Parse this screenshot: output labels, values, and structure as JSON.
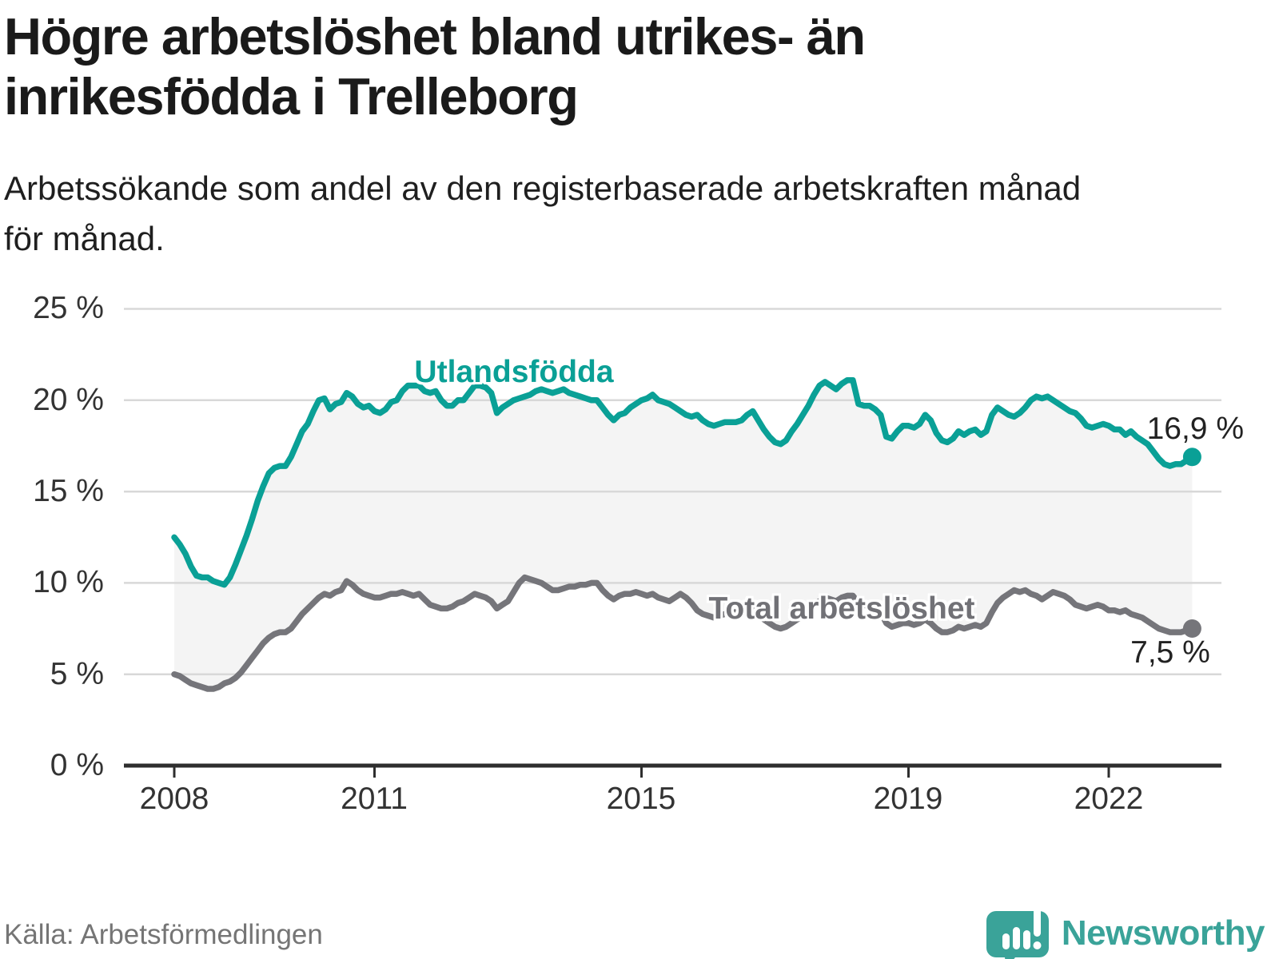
{
  "title_lines": [
    "Högre arbetslöshet bland utrikes- än",
    "inrikesfödda i Trelleborg"
  ],
  "subtitle_lines": [
    "Arbetssökande som andel av den registerbaserade arbetskraften månad",
    "för månad."
  ],
  "source": "Källa: Arbetsförmedlingen",
  "branding": {
    "name": "Newsworthy"
  },
  "colors": {
    "series_foreign_born": "#0aa096",
    "series_total": "#75757a",
    "band_fill": "#f4f4f4",
    "grid": "#d8d8d8",
    "axis": "#2e2e2e",
    "logo_teal": "#3aa399"
  },
  "chart_data": {
    "type": "line",
    "title": "Högre arbetslöshet bland utrikes- än inrikesfödda i Trelleborg",
    "subtitle": "Arbetssökande som andel av den registerbaserade arbetskraften månad för månad.",
    "xlabel": "",
    "ylabel": "",
    "ylim": [
      0,
      25
    ],
    "grid": "horizontal",
    "legend_position": "inline-labels",
    "frequency": "monthly",
    "x_start": "2008-01",
    "x_end": "2023-04",
    "x_tick_labels": [
      "2008",
      "2011",
      "2015",
      "2019",
      "2022"
    ],
    "x_tick_years": [
      2008,
      2011,
      2015,
      2019,
      2022
    ],
    "y_tick_labels": [
      "25 %",
      "20 %",
      "15 %",
      "10 %",
      "5 %",
      "0 %"
    ],
    "y_tick_values": [
      25,
      20,
      15,
      10,
      5,
      0
    ],
    "band_between_series": true,
    "series": [
      {
        "name": "Utlandsfödda",
        "color": "#0aa096",
        "end_label": "16,9 %",
        "end_value": 16.9,
        "values": [
          12.5,
          12.1,
          11.6,
          10.9,
          10.4,
          10.3,
          10.3,
          10.1,
          10.0,
          9.9,
          10.3,
          11.0,
          11.8,
          12.6,
          13.5,
          14.5,
          15.3,
          16.0,
          16.3,
          16.4,
          16.4,
          16.9,
          17.6,
          18.3,
          18.7,
          19.4,
          20.0,
          20.1,
          19.5,
          19.8,
          19.9,
          20.4,
          20.2,
          19.8,
          19.6,
          19.7,
          19.4,
          19.3,
          19.5,
          19.9,
          20.0,
          20.5,
          20.8,
          20.8,
          20.8,
          20.5,
          20.4,
          20.5,
          20.0,
          19.7,
          19.7,
          20.0,
          20.0,
          20.4,
          20.8,
          20.8,
          20.7,
          20.4,
          19.3,
          19.6,
          19.8,
          20.0,
          20.1,
          20.2,
          20.3,
          20.5,
          20.6,
          20.5,
          20.4,
          20.5,
          20.6,
          20.4,
          20.3,
          20.2,
          20.1,
          20.0,
          20.0,
          19.6,
          19.2,
          18.9,
          19.2,
          19.3,
          19.6,
          19.8,
          20.0,
          20.1,
          20.3,
          20.0,
          19.9,
          19.8,
          19.6,
          19.4,
          19.2,
          19.1,
          19.2,
          18.9,
          18.7,
          18.6,
          18.7,
          18.8,
          18.8,
          18.8,
          18.9,
          19.2,
          19.4,
          18.9,
          18.4,
          18.0,
          17.7,
          17.6,
          17.8,
          18.3,
          18.7,
          19.2,
          19.7,
          20.3,
          20.8,
          21.0,
          20.8,
          20.6,
          20.9,
          21.1,
          21.1,
          19.8,
          19.7,
          19.7,
          19.5,
          19.2,
          18.0,
          17.9,
          18.3,
          18.6,
          18.6,
          18.5,
          18.7,
          19.2,
          18.9,
          18.2,
          17.8,
          17.7,
          17.9,
          18.3,
          18.1,
          18.3,
          18.4,
          18.1,
          18.3,
          19.2,
          19.6,
          19.4,
          19.2,
          19.1,
          19.3,
          19.6,
          20.0,
          20.2,
          20.1,
          20.2,
          20.0,
          19.8,
          19.6,
          19.4,
          19.3,
          19.0,
          18.6,
          18.5,
          18.6,
          18.7,
          18.6,
          18.4,
          18.4,
          18.1,
          18.3,
          18.0,
          17.8,
          17.6,
          17.2,
          16.8,
          16.5,
          16.4,
          16.5,
          16.5,
          16.7,
          16.9
        ]
      },
      {
        "name": "Total arbetslöshet",
        "color": "#75757a",
        "end_label": "7,5 %",
        "end_value": 7.5,
        "values": [
          5.0,
          4.9,
          4.7,
          4.5,
          4.4,
          4.3,
          4.2,
          4.2,
          4.3,
          4.5,
          4.6,
          4.8,
          5.1,
          5.5,
          5.9,
          6.3,
          6.7,
          7.0,
          7.2,
          7.3,
          7.3,
          7.5,
          7.9,
          8.3,
          8.6,
          8.9,
          9.2,
          9.4,
          9.3,
          9.5,
          9.6,
          10.1,
          9.9,
          9.6,
          9.4,
          9.3,
          9.2,
          9.2,
          9.3,
          9.4,
          9.4,
          9.5,
          9.4,
          9.3,
          9.4,
          9.1,
          8.8,
          8.7,
          8.6,
          8.6,
          8.7,
          8.9,
          9.0,
          9.2,
          9.4,
          9.3,
          9.2,
          9.0,
          8.6,
          8.8,
          9.0,
          9.5,
          10.0,
          10.3,
          10.2,
          10.1,
          10.0,
          9.8,
          9.6,
          9.6,
          9.7,
          9.8,
          9.8,
          9.9,
          9.9,
          10.0,
          10.0,
          9.6,
          9.3,
          9.1,
          9.3,
          9.4,
          9.4,
          9.5,
          9.4,
          9.3,
          9.4,
          9.2,
          9.1,
          9.0,
          9.2,
          9.4,
          9.2,
          8.9,
          8.5,
          8.3,
          8.2,
          8.1,
          8.2,
          8.3,
          8.4,
          8.4,
          8.5,
          8.6,
          8.5,
          8.3,
          8.0,
          7.8,
          7.6,
          7.5,
          7.6,
          7.8,
          8.0,
          8.2,
          8.5,
          8.8,
          9.0,
          9.2,
          9.1,
          9.0,
          9.2,
          9.3,
          9.3,
          8.9,
          8.8,
          8.7,
          8.6,
          8.4,
          7.8,
          7.6,
          7.7,
          7.8,
          7.8,
          7.7,
          7.8,
          8.0,
          7.8,
          7.5,
          7.3,
          7.3,
          7.4,
          7.6,
          7.5,
          7.6,
          7.7,
          7.6,
          7.8,
          8.4,
          8.9,
          9.2,
          9.4,
          9.6,
          9.5,
          9.6,
          9.4,
          9.3,
          9.1,
          9.3,
          9.5,
          9.4,
          9.3,
          9.1,
          8.8,
          8.7,
          8.6,
          8.7,
          8.8,
          8.7,
          8.5,
          8.5,
          8.4,
          8.5,
          8.3,
          8.2,
          8.1,
          7.9,
          7.7,
          7.5,
          7.4,
          7.3,
          7.3,
          7.3,
          7.4,
          7.5
        ]
      }
    ]
  }
}
